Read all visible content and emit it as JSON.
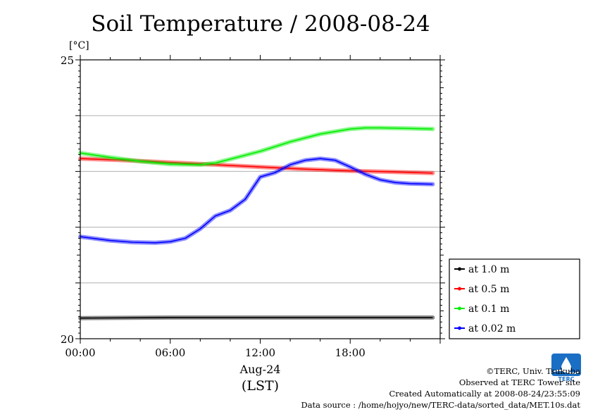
{
  "title": "Soil Temperature / 2008-08-24",
  "chart_data": {
    "type": "line",
    "title": "Soil Temperature / 2008-08-24",
    "ylabel": "[°C]",
    "xlabel": "Aug-24",
    "xlabel2": "(LST)",
    "ylim": [
      20,
      25
    ],
    "xlim": [
      0,
      24
    ],
    "y_tick_labels": [
      "20",
      "25"
    ],
    "y_gridlines": [
      21,
      22,
      23,
      24
    ],
    "x_ticks": [
      0,
      6,
      12,
      18
    ],
    "x_tick_labels": [
      "00:00",
      "06:00",
      "12:00",
      "18:00"
    ],
    "legend_placement": "right",
    "series": [
      {
        "name": "at 1.0 m",
        "color": "#000000",
        "x": [
          0,
          6,
          12,
          18,
          23.5
        ],
        "y": [
          20.37,
          20.38,
          20.38,
          20.38,
          20.38
        ]
      },
      {
        "name": "at 0.5 m",
        "color": "#ff0000",
        "x": [
          0,
          3,
          6,
          9,
          12,
          15,
          18,
          21,
          23.5
        ],
        "y": [
          23.23,
          23.2,
          23.16,
          23.12,
          23.08,
          23.04,
          23.01,
          22.99,
          22.97
        ]
      },
      {
        "name": "at 0.1 m",
        "color": "#00ee00",
        "x": [
          0,
          2,
          4,
          6,
          8,
          9,
          10,
          12,
          14,
          16,
          18,
          19,
          20,
          22,
          23.5
        ],
        "y": [
          23.33,
          23.25,
          23.18,
          23.13,
          23.12,
          23.15,
          23.22,
          23.36,
          23.53,
          23.67,
          23.76,
          23.78,
          23.78,
          23.77,
          23.76
        ]
      },
      {
        "name": "at 0.02 m",
        "color": "#0000ff",
        "x": [
          0,
          2,
          3.5,
          5,
          6,
          7,
          8,
          9,
          10,
          11,
          12,
          13,
          14,
          15,
          16,
          17,
          18,
          19,
          20,
          21,
          22,
          23.5
        ],
        "y": [
          21.83,
          21.76,
          21.73,
          21.72,
          21.74,
          21.8,
          21.97,
          22.2,
          22.3,
          22.5,
          22.9,
          22.98,
          23.12,
          23.2,
          23.23,
          23.2,
          23.08,
          22.95,
          22.85,
          22.8,
          22.78,
          22.77
        ]
      }
    ]
  },
  "footer": {
    "copyright": "©TERC, Univ. Tsukuba",
    "observed": "Observed at TERC Tower site",
    "created": "Created Automatically at 2008-08-24/23:55:09",
    "source": "Data source : /home/hojyo/new/TERC-data/sorted_data/MET.10s.dat"
  },
  "logo": {
    "text": "TERC",
    "color": "#1a6fc4"
  }
}
